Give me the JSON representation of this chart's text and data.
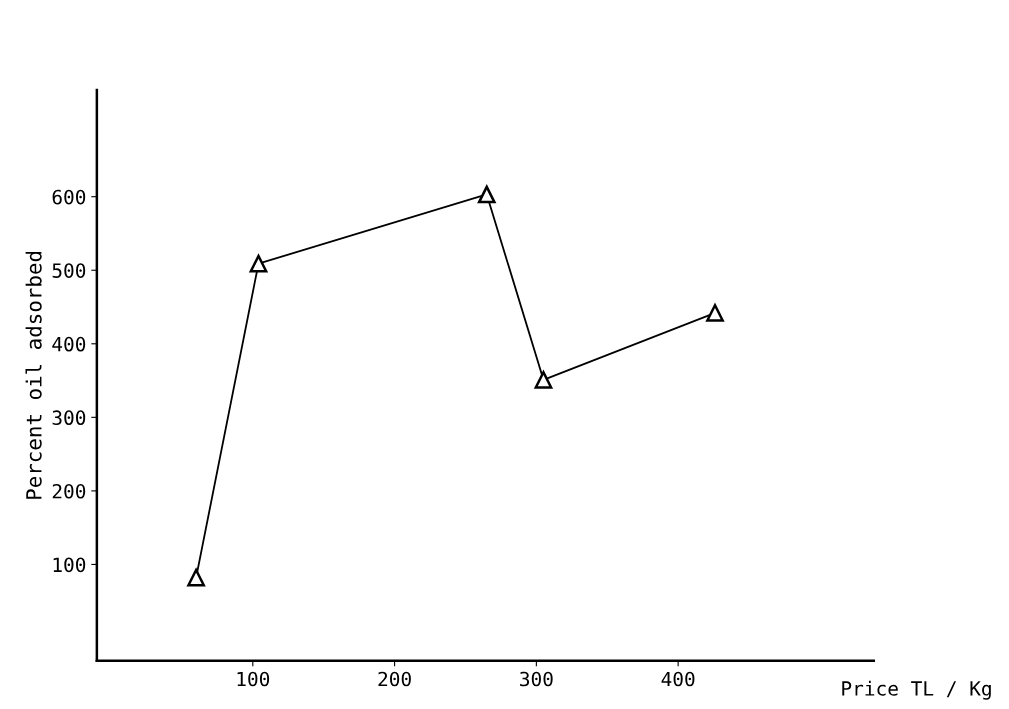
{
  "chart_data": {
    "type": "line",
    "xlabel": "Price TL / Kg",
    "ylabel": "Percent oil adsorbed",
    "x": [
      60,
      104,
      265,
      305,
      426
    ],
    "series": [
      {
        "color": "#000000",
        "values": [
          82,
          509,
          603,
          351,
          442
        ]
      }
    ],
    "marker": "triangle",
    "line_style": "solid",
    "grid": false,
    "legend": false,
    "xlim": [
      -10,
      538
    ],
    "ylim": [
      -31,
      745
    ],
    "xticks": [
      100,
      200,
      300,
      400
    ],
    "yticks": [
      100,
      200,
      300,
      400,
      500,
      600
    ]
  }
}
